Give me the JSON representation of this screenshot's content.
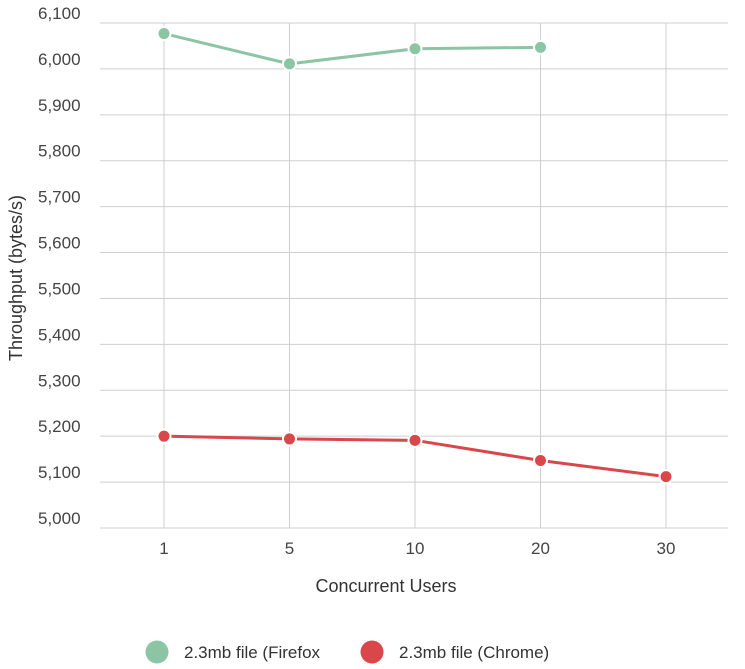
{
  "chart_data": {
    "type": "line",
    "categories": [
      "1",
      "5",
      "10",
      "20",
      "30"
    ],
    "xlabel": "Concurrent Users",
    "ylabel": "Throughput (bytes/s)",
    "ylim": [
      5000,
      6100
    ],
    "yticks": [
      5000,
      5100,
      5200,
      5300,
      5400,
      5500,
      5600,
      5700,
      5800,
      5900,
      6000,
      6100
    ],
    "ytick_labels": [
      "5,000",
      "5,100",
      "5,200",
      "5,300",
      "5,400",
      "5,500",
      "5,600",
      "5,700",
      "5,800",
      "5,900",
      "6,000",
      "6,100"
    ],
    "grid": true,
    "legend_position": "bottom",
    "series": [
      {
        "name": "2.3mb file (Firefox",
        "color": "#8cc5a4",
        "values": [
          6077,
          6011,
          6044,
          6047,
          null
        ]
      },
      {
        "name": "2.3mb file (Chrome)",
        "color": "#d9474b",
        "values": [
          5200,
          5194,
          5191,
          5147,
          5112
        ]
      }
    ]
  }
}
